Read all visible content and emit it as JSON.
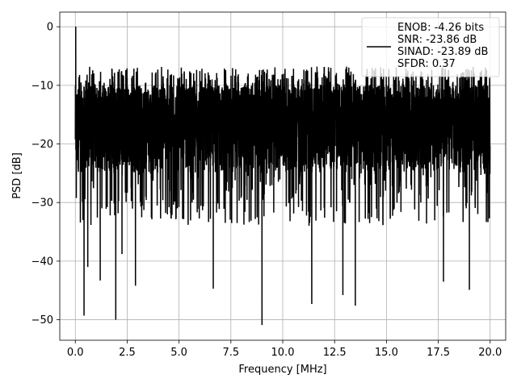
{
  "chart_data": {
    "type": "line",
    "title": "",
    "xlabel": "Frequency [MHz]",
    "ylabel": "PSD [dB]",
    "xlim": [
      -0.75,
      20.75
    ],
    "ylim": [
      -53.5,
      2.5
    ],
    "xticks": [
      0.0,
      2.5,
      5.0,
      7.5,
      10.0,
      12.5,
      15.0,
      17.5,
      20.0
    ],
    "xtick_labels": [
      "0.0",
      "2.5",
      "5.0",
      "7.5",
      "10.0",
      "12.5",
      "15.0",
      "17.5",
      "20.0"
    ],
    "yticks": [
      0,
      -10,
      -20,
      -30,
      -40,
      -50
    ],
    "ytick_labels": [
      "0",
      "−10",
      "−20",
      "−30",
      "−40",
      "−50"
    ],
    "grid": true,
    "legend_position": "top-right",
    "series": [
      {
        "name": "ENOB: -4.26 bits\nSNR: -23.86 dB\nSINAD: -23.89 dB\nSFDR: 0.37",
        "color": "#000000",
        "x_range": [
          0,
          20
        ],
        "band_top": -10,
        "band_bottom": -25,
        "notable_points": [
          {
            "x": 0.02,
            "y": 0.0
          },
          {
            "x": 0.42,
            "y": -49.3
          },
          {
            "x": 0.6,
            "y": -41.0
          },
          {
            "x": 1.2,
            "y": -43.3
          },
          {
            "x": 1.95,
            "y": -50.0
          },
          {
            "x": 2.25,
            "y": -38.8
          },
          {
            "x": 2.9,
            "y": -44.2
          },
          {
            "x": 6.65,
            "y": -44.7
          },
          {
            "x": 9.0,
            "y": -50.9
          },
          {
            "x": 11.4,
            "y": -47.3
          },
          {
            "x": 12.9,
            "y": -45.8
          },
          {
            "x": 13.5,
            "y": -47.6
          },
          {
            "x": 17.75,
            "y": -43.5
          },
          {
            "x": 19.0,
            "y": -44.9
          }
        ]
      }
    ]
  }
}
